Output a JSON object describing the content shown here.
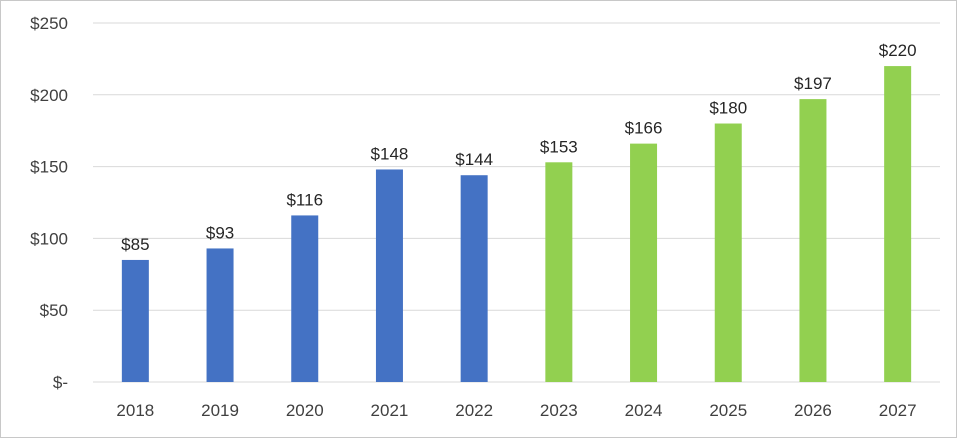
{
  "chart_data": {
    "type": "bar",
    "title": "",
    "xlabel": "",
    "ylabel": "",
    "categories": [
      "2018",
      "2019",
      "2020",
      "2021",
      "2022",
      "2023",
      "2024",
      "2025",
      "2026",
      "2027"
    ],
    "values": [
      85,
      93,
      116,
      148,
      144,
      153,
      166,
      180,
      197,
      220
    ],
    "value_labels": [
      "$85",
      "$93",
      "$116",
      "$148",
      "$144",
      "$153",
      "$166",
      "$180",
      "$197",
      "$220"
    ],
    "bar_kind": [
      "actual",
      "actual",
      "actual",
      "actual",
      "actual",
      "projected",
      "projected",
      "projected",
      "projected",
      "projected"
    ],
    "ylim": [
      0,
      250
    ],
    "yticks": [
      0,
      50,
      100,
      150,
      200,
      250
    ],
    "ytick_labels": [
      "$-",
      "$50",
      "$100",
      "$150",
      "$200",
      "$250"
    ],
    "grid": true,
    "legend": "none",
    "colors": {
      "actual": "#4472c4",
      "projected": "#92d050",
      "grid": "#d9d9d9"
    }
  }
}
